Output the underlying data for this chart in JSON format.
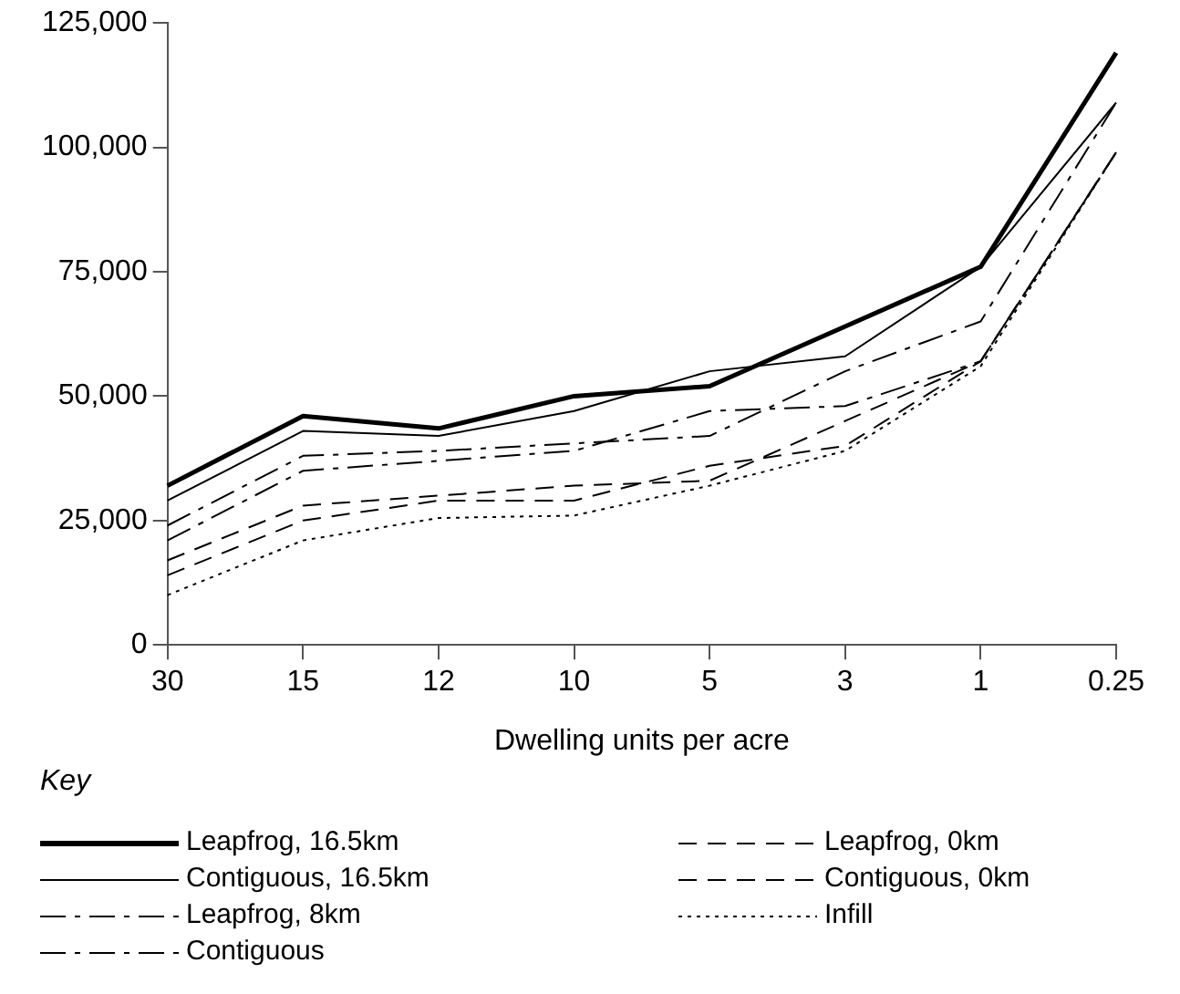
{
  "chart_data": {
    "type": "line",
    "xlabel": "Dwelling units per acre",
    "legend_title": "Key",
    "legend": "bottom",
    "grid": false,
    "marker": "none",
    "categories": [
      "30",
      "15",
      "12",
      "10",
      "5",
      "3",
      "1",
      "0.25"
    ],
    "ylim": [
      0,
      125000
    ],
    "yticks": [
      {
        "value": 0,
        "label": "0"
      },
      {
        "value": 25000,
        "label": "25,000"
      },
      {
        "value": 50000,
        "label": "50,000"
      },
      {
        "value": 75000,
        "label": "75,000"
      },
      {
        "value": 100000,
        "label": "100,000"
      },
      {
        "value": 125000,
        "label": "125,000"
      }
    ],
    "series": [
      {
        "name": "Leapfrog, 16.5km",
        "color": "#000000",
        "line_style": "solid",
        "values": [
          32000,
          46000,
          43500,
          50000,
          52000,
          64000,
          76000,
          119000
        ]
      },
      {
        "name": "Contiguous, 16.5km",
        "color": "#000000",
        "line_style": "solid",
        "values": [
          29000,
          43000,
          42000,
          47000,
          55000,
          58000,
          76000,
          109000
        ]
      },
      {
        "name": "Leapfrog, 8km",
        "color": "#000000",
        "line_style": "dashdot",
        "values": [
          24000,
          38000,
          39000,
          40500,
          42000,
          55000,
          65000,
          109000
        ]
      },
      {
        "name": "Contiguous",
        "color": "#000000",
        "line_style": "dashdot",
        "values": [
          21000,
          35000,
          37000,
          39000,
          47000,
          48000,
          57000,
          99000
        ]
      },
      {
        "name": "Leapfrog, 0km",
        "color": "#000000",
        "line_style": "dashed",
        "values": [
          17000,
          28000,
          30000,
          32000,
          33000,
          45000,
          57000,
          99000
        ]
      },
      {
        "name": "Contiguous, 0km",
        "color": "#000000",
        "line_style": "dashed",
        "values": [
          14000,
          25000,
          29000,
          29000,
          36000,
          40000,
          57000,
          99000
        ]
      },
      {
        "name": "Infill",
        "color": "#000000",
        "line_style": "dotted",
        "values": [
          10000,
          21000,
          25500,
          26000,
          32000,
          39000,
          56000,
          99000
        ]
      }
    ]
  }
}
